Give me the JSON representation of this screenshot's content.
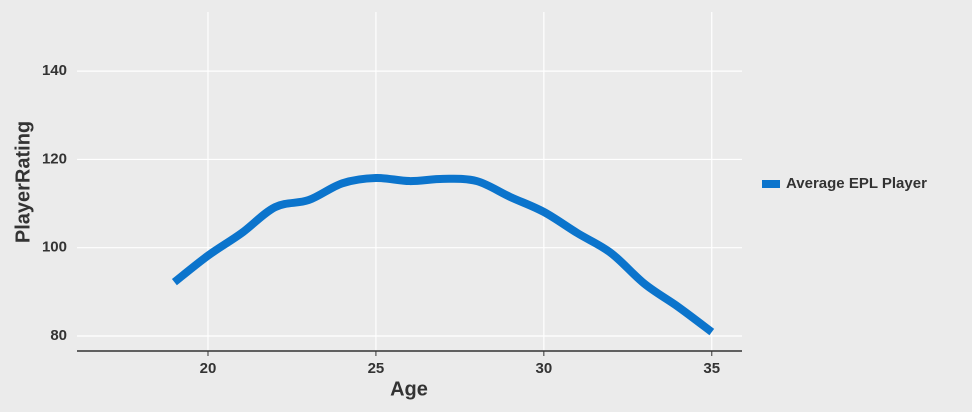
{
  "chart_data": {
    "type": "line",
    "x_label": "Age",
    "y_label": "PlayerRating",
    "x": [
      19,
      20,
      21,
      22,
      23,
      24,
      25,
      26,
      27,
      28,
      29,
      30,
      31,
      32,
      33,
      34,
      35
    ],
    "series": [
      {
        "name": "Average EPL Player",
        "color": "#0b74cc",
        "values": [
          92.2,
          98.2,
          103.3,
          109.2,
          110.8,
          114.6,
          115.8,
          115.1,
          115.6,
          115.1,
          111.5,
          108.1,
          103.3,
          98.8,
          91.8,
          86.6,
          80.9
        ]
      }
    ],
    "xlim": [
      16.1,
      35.9
    ],
    "xticks": [
      20,
      25,
      30,
      35
    ],
    "ylim": [
      76.6,
      153.4
    ],
    "yticks": [
      80,
      100,
      120,
      140
    ],
    "grid": true,
    "legend": "right"
  }
}
